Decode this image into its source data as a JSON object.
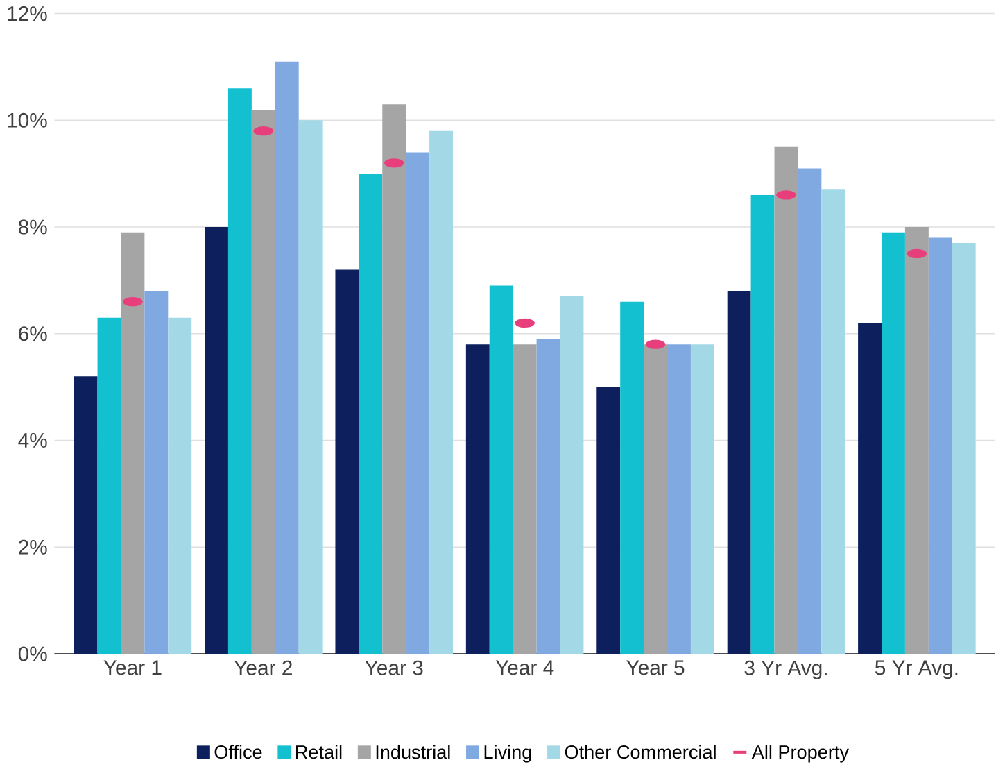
{
  "chart_data": {
    "type": "bar",
    "categories": [
      "Year 1",
      "Year 2",
      "Year 3",
      "Year 4",
      "Year 5",
      "3 Yr Avg.",
      "5 Yr Avg."
    ],
    "series": [
      {
        "name": "Office",
        "color": "#0d1f5c",
        "values": [
          5.2,
          8.0,
          7.2,
          5.8,
          5.0,
          6.8,
          6.2
        ]
      },
      {
        "name": "Retail",
        "color": "#12c0d0",
        "values": [
          6.3,
          10.6,
          9.0,
          6.9,
          6.6,
          8.6,
          7.9
        ]
      },
      {
        "name": "Industrial",
        "color": "#a5a5a5",
        "values": [
          7.9,
          10.2,
          10.3,
          5.8,
          5.8,
          9.5,
          8.0
        ]
      },
      {
        "name": "Living",
        "color": "#7fa9e0",
        "values": [
          6.8,
          11.1,
          9.4,
          5.9,
          5.8,
          9.1,
          7.8
        ]
      },
      {
        "name": "Other Commercial",
        "color": "#a3d9e6",
        "values": [
          6.3,
          10.0,
          9.8,
          6.7,
          5.8,
          8.7,
          7.7
        ]
      },
      {
        "name": "All Property",
        "type": "scatter",
        "color": "#e83e7c",
        "x": [
          "Year 1",
          "Year 2",
          "Year 3",
          "Year 4",
          "Year 5",
          "3 Yr Avg.",
          "5 Yr Avg."
        ],
        "values": [
          6.6,
          9.8,
          9.2,
          6.2,
          5.8,
          8.6,
          7.5
        ]
      }
    ],
    "ylim": [
      0,
      12
    ],
    "yticks": [
      {
        "value": 0,
        "label": "0%"
      },
      {
        "value": 2,
        "label": "2%"
      },
      {
        "value": 4,
        "label": "4%"
      },
      {
        "value": 6,
        "label": "6%"
      },
      {
        "value": 8,
        "label": "8%"
      },
      {
        "value": 10,
        "label": "10%"
      },
      {
        "value": 12,
        "label": "12%"
      }
    ],
    "grid": "y",
    "legend": "bottom"
  }
}
